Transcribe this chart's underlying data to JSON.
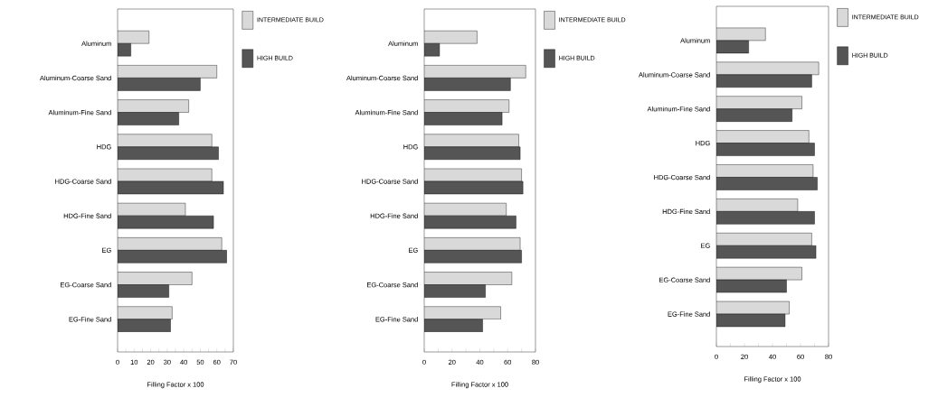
{
  "chart_data": [
    {
      "type": "bar",
      "orientation": "horizontal",
      "categories": [
        "Aluminum",
        "Aluminum-Coarse Sand",
        "Aluminum-Fine Sand",
        "HDG",
        "HDG-Coarse Sand",
        "HDG-Fine Sand",
        "EG",
        "EG-Coarse Sand",
        "EG-Fine Sand"
      ],
      "series": [
        {
          "name": "INTERMEDIATE BUILD",
          "color": "#d9d9d9",
          "values": [
            19,
            60,
            43,
            57,
            57,
            41,
            63,
            45,
            33
          ]
        },
        {
          "name": "HIGH BUILD",
          "color": "#555555",
          "values": [
            8,
            50,
            37,
            61,
            64,
            58,
            66,
            31,
            32
          ]
        }
      ],
      "xlabel": "Filling Factor x 100",
      "xlim": [
        0,
        70
      ],
      "xticks": [
        0,
        {
          "value": 5,
          "label": null
        },
        10,
        {
          "value": 15,
          "label": null
        },
        20,
        {
          "value": 25,
          "label": null
        },
        30,
        {
          "value": 35,
          "label": null
        },
        40,
        {
          "value": 45,
          "label": null
        },
        50,
        {
          "value": 55,
          "label": null
        },
        60,
        {
          "value": 65,
          "label": null
        },
        70
      ],
      "legend": "right"
    },
    {
      "type": "bar",
      "orientation": "horizontal",
      "categories": [
        "Aluminum",
        "Aluminum-Coarse Sand",
        "Aluminum-Fine Sand",
        "HDG",
        "HDG-Coarse Sand",
        "HDG-Fine Sand",
        "EG",
        "EG-Coarse Sand",
        "EG-Fine Sand"
      ],
      "series": [
        {
          "name": "INTERMEDIATE BUILD",
          "color": "#d9d9d9",
          "values": [
            38,
            73,
            61,
            68,
            70,
            59,
            69,
            63,
            55
          ]
        },
        {
          "name": "HIGH BUILD",
          "color": "#555555",
          "values": [
            11,
            62,
            56,
            69,
            71,
            66,
            70,
            44,
            42
          ]
        }
      ],
      "xlabel": "Filling Factor x 100",
      "xlim": [
        0,
        80
      ],
      "xticks": [
        0,
        {
          "value": 10,
          "label": null
        },
        20,
        {
          "value": 30,
          "label": null
        },
        40,
        {
          "value": 50,
          "label": null
        },
        60,
        {
          "value": 70,
          "label": null
        },
        80
      ],
      "legend": "right"
    },
    {
      "type": "bar",
      "orientation": "horizontal",
      "categories": [
        "Aluminum",
        "Aluminum-Coarse Sand",
        "Aluminum-Fine Sand",
        "HDG",
        "HDG-Coarse Sand",
        "HDG-Fine Sand",
        "EG",
        "EG-Coarse Sand",
        "EG-Fine Sand"
      ],
      "series": [
        {
          "name": "INTERMEDIATE BUILD",
          "color": "#d9d9d9",
          "values": [
            35,
            73,
            61,
            66,
            69,
            58,
            68,
            61,
            52
          ]
        },
        {
          "name": "HIGH BUILD",
          "color": "#555555",
          "values": [
            23,
            68,
            54,
            70,
            72,
            70,
            71,
            50,
            49
          ]
        }
      ],
      "xlabel": "Filling Factor x 100",
      "xlim": [
        0,
        80
      ],
      "xticks": [
        0,
        {
          "value": 10,
          "label": null
        },
        20,
        {
          "value": 30,
          "label": null
        },
        40,
        {
          "value": 50,
          "label": null
        },
        60,
        {
          "value": 70,
          "label": null
        },
        80
      ],
      "legend": "right"
    }
  ]
}
